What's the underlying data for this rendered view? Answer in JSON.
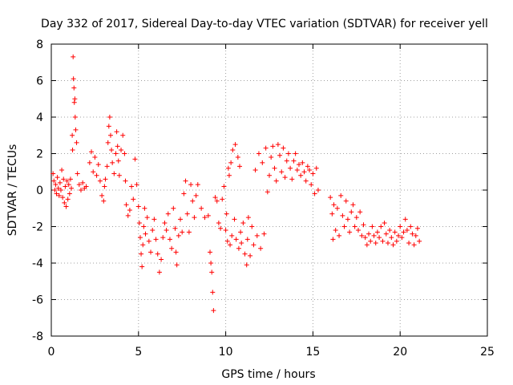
{
  "chart_data": {
    "type": "scatter",
    "title": "Day 332 of 2017, Sidereal Day-to-day VTEC variation (SDTVAR) for receiver yell",
    "xlabel": "GPS time / hours",
    "ylabel": "SDTVAR / TECUs",
    "xlim": [
      0,
      25
    ],
    "ylim": [
      -8,
      8
    ],
    "xticks": [
      0,
      5,
      10,
      15,
      20,
      25
    ],
    "yticks": [
      -8,
      -6,
      -4,
      -2,
      0,
      2,
      4,
      6,
      8
    ],
    "grid": true,
    "marker": "+",
    "series": [
      {
        "name": "SDTVAR",
        "color": "#ff0000",
        "points": [
          [
            0.1,
            0.9
          ],
          [
            0.15,
            0.5
          ],
          [
            0.2,
            0.0
          ],
          [
            0.25,
            0.3
          ],
          [
            0.3,
            -0.2
          ],
          [
            0.35,
            0.7
          ],
          [
            0.4,
            0.1
          ],
          [
            0.45,
            -0.3
          ],
          [
            0.5,
            0.4
          ],
          [
            0.55,
            0.0
          ],
          [
            0.6,
            1.1
          ],
          [
            0.65,
            -0.4
          ],
          [
            0.7,
            0.6
          ],
          [
            0.75,
            -0.7
          ],
          [
            0.8,
            0.2
          ],
          [
            0.85,
            -0.9
          ],
          [
            0.9,
            0.5
          ],
          [
            0.95,
            -0.5
          ],
          [
            1.0,
            0.3
          ],
          [
            1.05,
            -0.2
          ],
          [
            1.1,
            0.6
          ],
          [
            1.15,
            0.1
          ],
          [
            1.2,
            3.0
          ],
          [
            1.22,
            2.2
          ],
          [
            1.25,
            7.3
          ],
          [
            1.27,
            6.1
          ],
          [
            1.3,
            5.6
          ],
          [
            1.32,
            4.8
          ],
          [
            1.35,
            5.0
          ],
          [
            1.37,
            4.0
          ],
          [
            1.4,
            3.3
          ],
          [
            1.45,
            2.6
          ],
          [
            1.5,
            0.9
          ],
          [
            1.6,
            0.3
          ],
          [
            1.7,
            0.0
          ],
          [
            1.8,
            0.4
          ],
          [
            1.9,
            0.1
          ],
          [
            2.0,
            0.2
          ],
          [
            2.2,
            1.5
          ],
          [
            2.3,
            2.1
          ],
          [
            2.4,
            1.0
          ],
          [
            2.5,
            1.8
          ],
          [
            2.6,
            0.8
          ],
          [
            2.7,
            1.4
          ],
          [
            2.8,
            0.5
          ],
          [
            2.9,
            -0.3
          ],
          [
            3.0,
            -0.6
          ],
          [
            3.05,
            0.2
          ],
          [
            3.1,
            0.6
          ],
          [
            3.2,
            1.3
          ],
          [
            3.25,
            2.6
          ],
          [
            3.3,
            3.5
          ],
          [
            3.35,
            4.0
          ],
          [
            3.4,
            3.0
          ],
          [
            3.45,
            2.2
          ],
          [
            3.5,
            1.5
          ],
          [
            3.6,
            0.9
          ],
          [
            3.7,
            2.0
          ],
          [
            3.75,
            3.2
          ],
          [
            3.8,
            2.4
          ],
          [
            3.85,
            1.6
          ],
          [
            3.9,
            0.8
          ],
          [
            4.0,
            2.2
          ],
          [
            4.1,
            3.0
          ],
          [
            4.2,
            2.0
          ],
          [
            4.25,
            0.5
          ],
          [
            4.3,
            -0.8
          ],
          [
            4.4,
            -1.4
          ],
          [
            4.5,
            -1.1
          ],
          [
            4.6,
            0.2
          ],
          [
            4.7,
            -0.5
          ],
          [
            4.8,
            1.7
          ],
          [
            4.9,
            0.3
          ],
          [
            5.0,
            -0.9
          ],
          [
            5.05,
            -1.8
          ],
          [
            5.1,
            -2.6
          ],
          [
            5.15,
            -3.5
          ],
          [
            5.2,
            -4.2
          ],
          [
            5.25,
            -3.0
          ],
          [
            5.3,
            -2.0
          ],
          [
            5.35,
            -1.0
          ],
          [
            5.4,
            -2.4
          ],
          [
            5.5,
            -1.5
          ],
          [
            5.6,
            -2.8
          ],
          [
            5.7,
            -3.4
          ],
          [
            5.8,
            -2.2
          ],
          [
            5.9,
            -1.6
          ],
          [
            6.0,
            -2.7
          ],
          [
            6.1,
            -3.5
          ],
          [
            6.2,
            -4.5
          ],
          [
            6.3,
            -3.8
          ],
          [
            6.4,
            -2.6
          ],
          [
            6.5,
            -1.8
          ],
          [
            6.6,
            -2.2
          ],
          [
            6.7,
            -1.3
          ],
          [
            6.8,
            -2.7
          ],
          [
            6.9,
            -3.2
          ],
          [
            7.0,
            -1.0
          ],
          [
            7.1,
            -2.1
          ],
          [
            7.15,
            -3.4
          ],
          [
            7.2,
            -4.1
          ],
          [
            7.3,
            -2.5
          ],
          [
            7.4,
            -1.6
          ],
          [
            7.5,
            -2.3
          ],
          [
            7.6,
            -0.2
          ],
          [
            7.7,
            0.5
          ],
          [
            7.8,
            -1.3
          ],
          [
            7.9,
            -2.3
          ],
          [
            8.0,
            0.3
          ],
          [
            8.1,
            -0.6
          ],
          [
            8.2,
            -1.5
          ],
          [
            8.3,
            -0.3
          ],
          [
            8.4,
            0.3
          ],
          [
            8.6,
            -1.0
          ],
          [
            8.8,
            -1.5
          ],
          [
            9.0,
            -1.4
          ],
          [
            9.1,
            -3.4
          ],
          [
            9.15,
            -4.0
          ],
          [
            9.2,
            -4.5
          ],
          [
            9.25,
            -5.6
          ],
          [
            9.3,
            -6.6
          ],
          [
            9.4,
            -0.4
          ],
          [
            9.5,
            -0.6
          ],
          [
            9.6,
            -1.8
          ],
          [
            9.7,
            -2.1
          ],
          [
            9.8,
            -0.5
          ],
          [
            9.9,
            0.2
          ],
          [
            10.0,
            -2.2
          ],
          [
            10.05,
            -1.3
          ],
          [
            10.1,
            -2.8
          ],
          [
            10.15,
            1.2
          ],
          [
            10.2,
            0.8
          ],
          [
            10.25,
            -3.0
          ],
          [
            10.3,
            1.5
          ],
          [
            10.35,
            -2.5
          ],
          [
            10.4,
            2.2
          ],
          [
            10.5,
            -1.6
          ],
          [
            10.55,
            2.5
          ],
          [
            10.6,
            -2.7
          ],
          [
            10.7,
            1.8
          ],
          [
            10.75,
            -3.2
          ],
          [
            10.8,
            1.3
          ],
          [
            10.85,
            -2.3
          ],
          [
            10.9,
            -2.9
          ],
          [
            11.0,
            -1.8
          ],
          [
            11.1,
            -3.5
          ],
          [
            11.2,
            -4.1
          ],
          [
            11.25,
            -2.7
          ],
          [
            11.3,
            -1.5
          ],
          [
            11.4,
            -3.6
          ],
          [
            11.5,
            -2.0
          ],
          [
            11.6,
            -3.0
          ],
          [
            11.7,
            1.1
          ],
          [
            11.8,
            -2.5
          ],
          [
            11.9,
            2.0
          ],
          [
            12.0,
            -3.2
          ],
          [
            12.1,
            1.5
          ],
          [
            12.2,
            -2.4
          ],
          [
            12.3,
            2.3
          ],
          [
            12.4,
            -0.1
          ],
          [
            12.5,
            0.8
          ],
          [
            12.6,
            1.8
          ],
          [
            12.7,
            2.4
          ],
          [
            12.8,
            1.2
          ],
          [
            12.9,
            0.5
          ],
          [
            13.0,
            2.5
          ],
          [
            13.1,
            1.9
          ],
          [
            13.2,
            1.0
          ],
          [
            13.3,
            2.3
          ],
          [
            13.4,
            0.7
          ],
          [
            13.5,
            1.6
          ],
          [
            13.6,
            2.0
          ],
          [
            13.7,
            1.2
          ],
          [
            13.8,
            0.6
          ],
          [
            13.9,
            1.6
          ],
          [
            14.0,
            2.0
          ],
          [
            14.1,
            1.1
          ],
          [
            14.2,
            1.4
          ],
          [
            14.3,
            0.8
          ],
          [
            14.4,
            1.5
          ],
          [
            14.5,
            1.0
          ],
          [
            14.6,
            0.5
          ],
          [
            14.7,
            1.3
          ],
          [
            14.8,
            1.1
          ],
          [
            14.9,
            0.3
          ],
          [
            15.0,
            0.9
          ],
          [
            15.1,
            -0.2
          ],
          [
            15.2,
            1.2
          ],
          [
            15.3,
            0.0
          ],
          [
            16.0,
            -0.4
          ],
          [
            16.1,
            -1.3
          ],
          [
            16.15,
            -2.7
          ],
          [
            16.2,
            -0.8
          ],
          [
            16.3,
            -2.2
          ],
          [
            16.4,
            -1.0
          ],
          [
            16.5,
            -2.5
          ],
          [
            16.6,
            -0.3
          ],
          [
            16.7,
            -1.4
          ],
          [
            16.8,
            -2.0
          ],
          [
            16.9,
            -0.6
          ],
          [
            17.0,
            -1.6
          ],
          [
            17.1,
            -2.3
          ],
          [
            17.2,
            -1.2
          ],
          [
            17.3,
            -0.8
          ],
          [
            17.4,
            -2.0
          ],
          [
            17.5,
            -1.5
          ],
          [
            17.6,
            -2.2
          ],
          [
            17.7,
            -1.2
          ],
          [
            17.8,
            -2.5
          ],
          [
            17.9,
            -1.9
          ],
          [
            18.0,
            -2.6
          ],
          [
            18.1,
            -3.0
          ],
          [
            18.2,
            -2.4
          ],
          [
            18.3,
            -2.8
          ],
          [
            18.4,
            -2.0
          ],
          [
            18.5,
            -2.5
          ],
          [
            18.6,
            -2.9
          ],
          [
            18.7,
            -2.3
          ],
          [
            18.8,
            -2.6
          ],
          [
            18.9,
            -2.0
          ],
          [
            19.0,
            -2.8
          ],
          [
            19.1,
            -1.8
          ],
          [
            19.2,
            -2.4
          ],
          [
            19.3,
            -2.9
          ],
          [
            19.4,
            -2.2
          ],
          [
            19.5,
            -2.6
          ],
          [
            19.6,
            -3.0
          ],
          [
            19.7,
            -2.3
          ],
          [
            19.8,
            -2.8
          ],
          [
            19.9,
            -2.5
          ],
          [
            20.0,
            -2.0
          ],
          [
            20.1,
            -2.6
          ],
          [
            20.2,
            -2.3
          ],
          [
            20.3,
            -1.6
          ],
          [
            20.4,
            -2.2
          ],
          [
            20.5,
            -2.9
          ],
          [
            20.6,
            -2.0
          ],
          [
            20.7,
            -2.4
          ],
          [
            20.8,
            -3.0
          ],
          [
            20.9,
            -2.5
          ],
          [
            21.0,
            -2.1
          ],
          [
            21.1,
            -2.8
          ]
        ]
      }
    ]
  }
}
